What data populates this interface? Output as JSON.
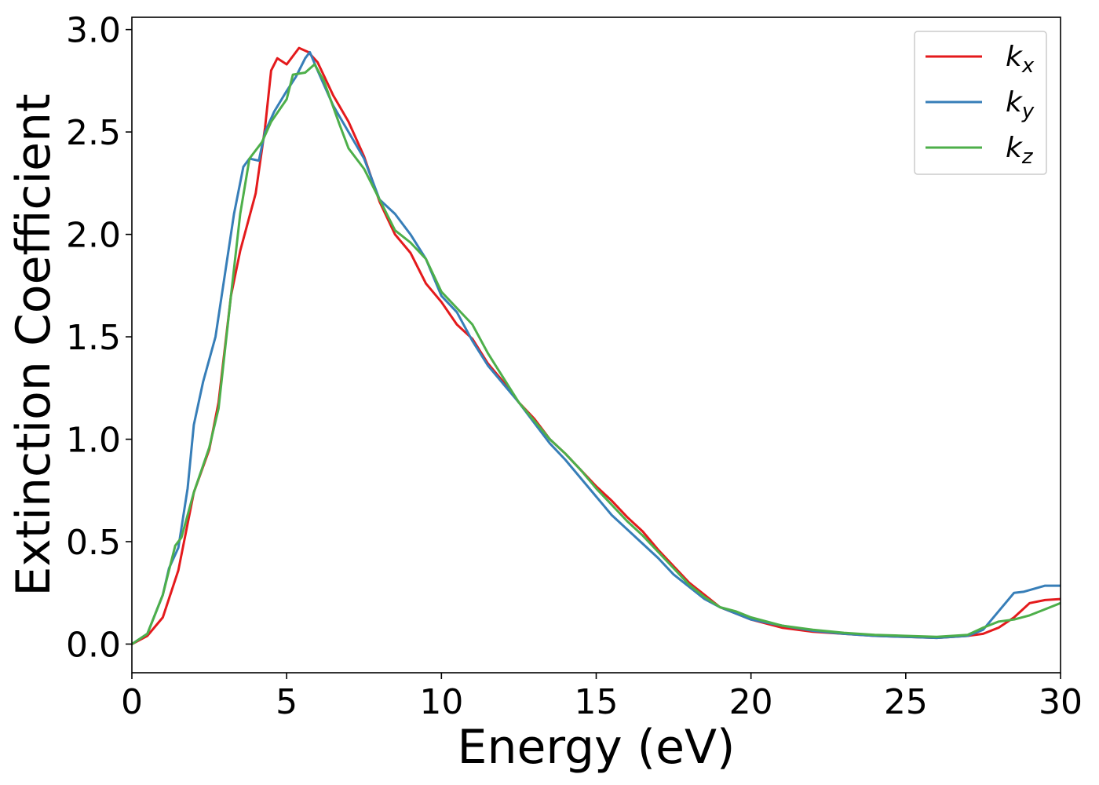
{
  "chart_data": {
    "type": "line",
    "title": "",
    "xlabel": "Energy (eV)",
    "ylabel": "Extinction Coefficient",
    "xlim": [
      0,
      30
    ],
    "ylim": [
      -0.14,
      3.06
    ],
    "xticks": [
      0,
      5,
      10,
      15,
      20,
      25,
      30
    ],
    "yticks": [
      0.0,
      0.5,
      1.0,
      1.5,
      2.0,
      2.5,
      3.0
    ],
    "xtick_labels": [
      "0",
      "5",
      "10",
      "15",
      "20",
      "25",
      "30"
    ],
    "ytick_labels": [
      "0.0",
      "0.5",
      "1.0",
      "1.5",
      "2.0",
      "2.5",
      "3.0"
    ],
    "grid": false,
    "legend_position": "top-right",
    "series": [
      {
        "name": "k",
        "subscript": "x",
        "color": "#e41a1c",
        "points": [
          [
            0,
            0.0
          ],
          [
            0.5,
            0.04
          ],
          [
            1.0,
            0.13
          ],
          [
            1.5,
            0.36
          ],
          [
            2.0,
            0.74
          ],
          [
            2.5,
            0.95
          ],
          [
            2.8,
            1.18
          ],
          [
            3.2,
            1.7
          ],
          [
            3.5,
            1.92
          ],
          [
            4.0,
            2.2
          ],
          [
            4.3,
            2.52
          ],
          [
            4.5,
            2.8
          ],
          [
            4.7,
            2.86
          ],
          [
            5.0,
            2.83
          ],
          [
            5.4,
            2.91
          ],
          [
            5.7,
            2.89
          ],
          [
            6.0,
            2.84
          ],
          [
            6.5,
            2.68
          ],
          [
            7.0,
            2.55
          ],
          [
            7.5,
            2.38
          ],
          [
            8.0,
            2.16
          ],
          [
            8.5,
            2.0
          ],
          [
            9.0,
            1.91
          ],
          [
            9.5,
            1.76
          ],
          [
            10.0,
            1.67
          ],
          [
            10.5,
            1.56
          ],
          [
            11.0,
            1.49
          ],
          [
            11.5,
            1.37
          ],
          [
            12.0,
            1.28
          ],
          [
            12.5,
            1.18
          ],
          [
            13.0,
            1.1
          ],
          [
            13.5,
            1.0
          ],
          [
            14.0,
            0.93
          ],
          [
            14.5,
            0.85
          ],
          [
            15.0,
            0.77
          ],
          [
            15.5,
            0.7
          ],
          [
            16.0,
            0.62
          ],
          [
            16.5,
            0.55
          ],
          [
            17.0,
            0.46
          ],
          [
            17.5,
            0.38
          ],
          [
            18.0,
            0.3
          ],
          [
            18.5,
            0.24
          ],
          [
            19.0,
            0.18
          ],
          [
            19.5,
            0.15
          ],
          [
            20.0,
            0.12
          ],
          [
            21.0,
            0.08
          ],
          [
            22.0,
            0.06
          ],
          [
            23.0,
            0.05
          ],
          [
            24.0,
            0.04
          ],
          [
            25.0,
            0.035
          ],
          [
            26.0,
            0.03
          ],
          [
            27.0,
            0.04
          ],
          [
            27.5,
            0.05
          ],
          [
            28.0,
            0.08
          ],
          [
            28.5,
            0.13
          ],
          [
            29.0,
            0.2
          ],
          [
            29.5,
            0.215
          ],
          [
            30.0,
            0.22
          ]
        ]
      },
      {
        "name": "k",
        "subscript": "y",
        "color": "#377eb8",
        "points": [
          [
            0,
            0.0
          ],
          [
            0.5,
            0.05
          ],
          [
            1.0,
            0.24
          ],
          [
            1.2,
            0.37
          ],
          [
            1.5,
            0.47
          ],
          [
            1.8,
            0.76
          ],
          [
            2.0,
            1.07
          ],
          [
            2.3,
            1.28
          ],
          [
            2.7,
            1.5
          ],
          [
            3.0,
            1.8
          ],
          [
            3.3,
            2.1
          ],
          [
            3.6,
            2.33
          ],
          [
            3.8,
            2.37
          ],
          [
            4.1,
            2.36
          ],
          [
            4.3,
            2.5
          ],
          [
            4.6,
            2.6
          ],
          [
            5.0,
            2.7
          ],
          [
            5.3,
            2.77
          ],
          [
            5.6,
            2.86
          ],
          [
            5.75,
            2.89
          ],
          [
            6.0,
            2.8
          ],
          [
            6.5,
            2.63
          ],
          [
            7.0,
            2.5
          ],
          [
            7.5,
            2.37
          ],
          [
            8.0,
            2.17
          ],
          [
            8.5,
            2.1
          ],
          [
            9.0,
            2.0
          ],
          [
            9.5,
            1.88
          ],
          [
            10.0,
            1.7
          ],
          [
            10.5,
            1.62
          ],
          [
            11.0,
            1.48
          ],
          [
            11.5,
            1.36
          ],
          [
            12.0,
            1.27
          ],
          [
            12.5,
            1.18
          ],
          [
            13.0,
            1.08
          ],
          [
            13.5,
            0.98
          ],
          [
            14.0,
            0.9
          ],
          [
            14.5,
            0.81
          ],
          [
            15.0,
            0.72
          ],
          [
            15.5,
            0.63
          ],
          [
            16.0,
            0.56
          ],
          [
            16.5,
            0.49
          ],
          [
            17.0,
            0.42
          ],
          [
            17.5,
            0.34
          ],
          [
            18.0,
            0.28
          ],
          [
            18.5,
            0.22
          ],
          [
            19.0,
            0.18
          ],
          [
            19.5,
            0.15
          ],
          [
            20.0,
            0.12
          ],
          [
            21.0,
            0.09
          ],
          [
            22.0,
            0.065
          ],
          [
            23.0,
            0.05
          ],
          [
            24.0,
            0.04
          ],
          [
            25.0,
            0.035
          ],
          [
            26.0,
            0.03
          ],
          [
            27.0,
            0.04
          ],
          [
            27.5,
            0.07
          ],
          [
            28.0,
            0.16
          ],
          [
            28.5,
            0.25
          ],
          [
            28.8,
            0.255
          ],
          [
            29.5,
            0.285
          ],
          [
            30.0,
            0.285
          ]
        ]
      },
      {
        "name": "k",
        "subscript": "z",
        "color": "#4daf4a",
        "points": [
          [
            0,
            0.0
          ],
          [
            0.5,
            0.05
          ],
          [
            1.0,
            0.24
          ],
          [
            1.4,
            0.48
          ],
          [
            1.6,
            0.52
          ],
          [
            2.0,
            0.74
          ],
          [
            2.5,
            0.96
          ],
          [
            2.8,
            1.15
          ],
          [
            3.2,
            1.7
          ],
          [
            3.5,
            2.1
          ],
          [
            3.8,
            2.37
          ],
          [
            4.2,
            2.45
          ],
          [
            4.5,
            2.55
          ],
          [
            5.0,
            2.66
          ],
          [
            5.2,
            2.78
          ],
          [
            5.6,
            2.79
          ],
          [
            5.9,
            2.83
          ],
          [
            6.2,
            2.75
          ],
          [
            6.7,
            2.54
          ],
          [
            7.0,
            2.42
          ],
          [
            7.5,
            2.32
          ],
          [
            8.0,
            2.17
          ],
          [
            8.5,
            2.02
          ],
          [
            9.0,
            1.96
          ],
          [
            9.5,
            1.88
          ],
          [
            10.0,
            1.72
          ],
          [
            10.5,
            1.64
          ],
          [
            11.0,
            1.56
          ],
          [
            11.5,
            1.42
          ],
          [
            12.0,
            1.3
          ],
          [
            12.5,
            1.18
          ],
          [
            13.0,
            1.09
          ],
          [
            13.5,
            1.0
          ],
          [
            14.0,
            0.93
          ],
          [
            14.5,
            0.85
          ],
          [
            15.0,
            0.76
          ],
          [
            15.5,
            0.68
          ],
          [
            16.0,
            0.6
          ],
          [
            16.5,
            0.53
          ],
          [
            17.0,
            0.45
          ],
          [
            17.5,
            0.37
          ],
          [
            18.0,
            0.29
          ],
          [
            18.5,
            0.23
          ],
          [
            19.0,
            0.18
          ],
          [
            19.5,
            0.16
          ],
          [
            20.0,
            0.13
          ],
          [
            21.0,
            0.09
          ],
          [
            22.0,
            0.07
          ],
          [
            23.0,
            0.055
          ],
          [
            24.0,
            0.045
          ],
          [
            25.0,
            0.04
          ],
          [
            26.0,
            0.035
          ],
          [
            27.0,
            0.045
          ],
          [
            27.5,
            0.08
          ],
          [
            28.0,
            0.11
          ],
          [
            28.5,
            0.12
          ],
          [
            29.0,
            0.14
          ],
          [
            29.5,
            0.17
          ],
          [
            30.0,
            0.2
          ]
        ]
      }
    ]
  }
}
